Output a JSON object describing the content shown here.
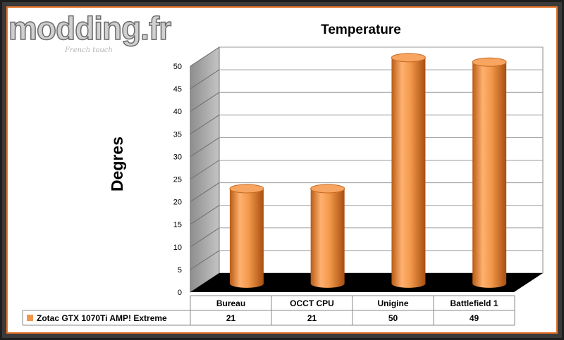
{
  "logo": {
    "name": "modding.fr",
    "tagline": "French touch"
  },
  "chart_data": {
    "type": "bar",
    "title": "Temperature",
    "ylabel": "Degres",
    "xlabel": "",
    "categories": [
      "Bureau",
      "OCCT CPU",
      "Unigine",
      "Battlefield 1"
    ],
    "series": [
      {
        "name": "Zotac GTX 1070Ti AMP! Extreme",
        "values": [
          21,
          21,
          50,
          49
        ],
        "color": "#f0964a"
      }
    ],
    "ylim": [
      0,
      50
    ],
    "yticks": [
      0,
      5,
      10,
      15,
      20,
      25,
      30,
      35,
      40,
      45,
      50
    ],
    "grid": true,
    "style": "3d-cylinder",
    "data_table": true,
    "colors": {
      "frame_accent": "#e8742a",
      "bar": "#f0964a",
      "floor": "#000000",
      "side_wall": "#a8a8a8"
    }
  }
}
